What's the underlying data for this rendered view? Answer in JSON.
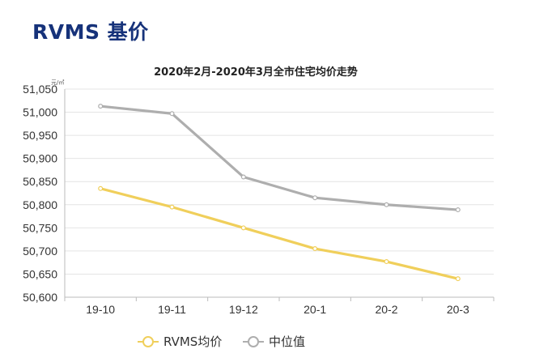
{
  "page": {
    "title": "RVMS 基价"
  },
  "colors": {
    "rvms": "#f0cf5b",
    "median": "#aeaeae",
    "grid": "#e4e4e4",
    "axis": "#bbbbbb"
  },
  "chart_data": {
    "type": "line",
    "title": "2020年2月-2020年3月全市住宅均价走势",
    "ylabel": "元/㎡",
    "xlabel": "",
    "categories": [
      "19-10",
      "19-11",
      "19-12",
      "20-1",
      "20-2",
      "20-3"
    ],
    "yticks": [
      "50,600",
      "50,650",
      "50,700",
      "50,750",
      "50,800",
      "50,850",
      "50,900",
      "50,950",
      "51,000",
      "51,050"
    ],
    "ylim": [
      50600,
      51050
    ],
    "grid": true,
    "legend_position": "bottom",
    "series": [
      {
        "name": "RVMS均价",
        "color": "#f0cf5b",
        "values": [
          50835,
          50795,
          50750,
          50705,
          50677,
          50640
        ]
      },
      {
        "name": "中位值",
        "color": "#aeaeae",
        "values": [
          51013,
          50997,
          50860,
          50815,
          50800,
          50789
        ]
      }
    ]
  }
}
